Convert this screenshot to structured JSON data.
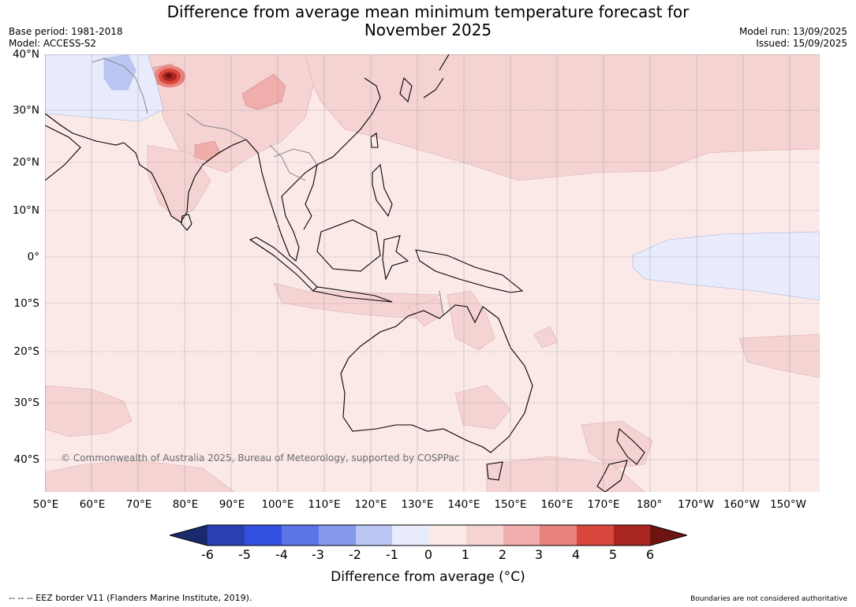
{
  "title_line1": "Difference from average mean minimum temperature forecast for",
  "title_line2": "November 2025",
  "meta_left": [
    "Base period: 1981-2018",
    "Model: ACCESS-S2"
  ],
  "meta_right": [
    "Model run: 13/09/2025",
    "Issued: 15/09/2025"
  ],
  "lat_labels": [
    "40°N",
    "30°N",
    "20°N",
    "10°N",
    "0°",
    "10°S",
    "20°S",
    "30°S",
    "40°S"
  ],
  "lon_labels": [
    "50°E",
    "60°E",
    "70°E",
    "80°E",
    "90°E",
    "100°E",
    "110°E",
    "120°E",
    "130°E",
    "140°E",
    "150°E",
    "160°E",
    "170°E",
    "180°",
    "170°W",
    "160°W",
    "150°W"
  ],
  "copyright": "© Commonwealth of Australia 2025, Bureau of Meteorology, supported by COSPPac",
  "colorbar": {
    "ticks": [
      "-6",
      "-5",
      "-4",
      "-3",
      "-2",
      "-1",
      "0",
      "1",
      "2",
      "3",
      "4",
      "5",
      "6"
    ],
    "colors": [
      "#1a2a6e",
      "#2a3fb0",
      "#3350e0",
      "#5b74e6",
      "#8698ec",
      "#bcc6f4",
      "#e8ebfb",
      "#fbe9e8",
      "#f5d3d2",
      "#efadab",
      "#e8827d",
      "#d9473d",
      "#a8261f",
      "#6e1410"
    ],
    "label": "Difference from average (°C)"
  },
  "footer_left": "-- -- -- EEZ border V11 (Flanders Marine Institute, 2019).",
  "footer_right": "Boundaries are not considered authoritative"
}
